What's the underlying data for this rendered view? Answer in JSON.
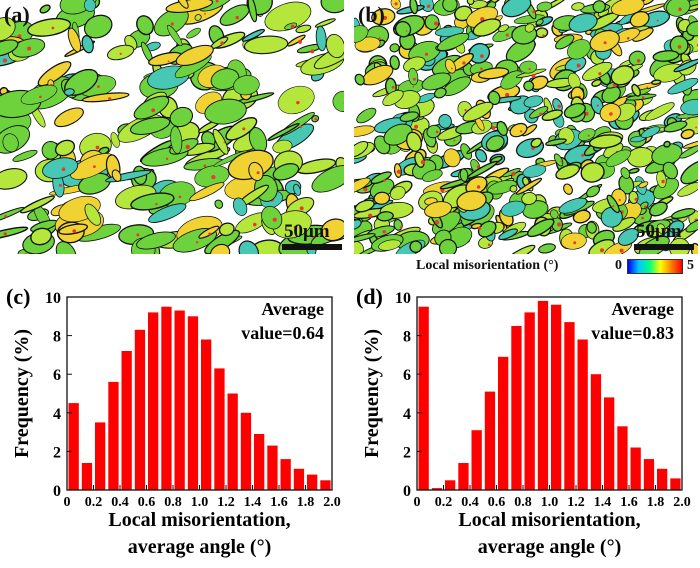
{
  "panels": {
    "a": {
      "label": "(a)",
      "scale": "50μm"
    },
    "b": {
      "label": "(b)",
      "scale": "50μm"
    },
    "c": {
      "label": "(c)"
    },
    "d": {
      "label": "(d)"
    }
  },
  "colorbar": {
    "label": "Local misorientation (°)",
    "min": "0",
    "max": "5",
    "colors": [
      "#0000ff",
      "#00c8ff",
      "#00ff80",
      "#ffff00",
      "#ff8000",
      "#ff0000"
    ]
  },
  "map_colors": {
    "base": "#6ed23c",
    "light": "#b4e63c",
    "cyan": "#46c8b4",
    "yellow": "#f0d232",
    "red": "#e63c28",
    "border": "#111111"
  },
  "chart_data": [
    {
      "type": "bar",
      "panel": "(c)",
      "ylabel": "Frequency (%)",
      "xlabel": "Local misorientation, average angle (°)",
      "xlabel_lines": [
        "Local misorientation,",
        "average angle (°)"
      ],
      "annotation": [
        "Average",
        "value=0.64"
      ],
      "x": [
        0.0,
        0.1,
        0.2,
        0.3,
        0.4,
        0.5,
        0.6,
        0.7,
        0.8,
        0.9,
        1.0,
        1.1,
        1.2,
        1.3,
        1.4,
        1.5,
        1.6,
        1.7,
        1.8,
        1.9
      ],
      "values": [
        4.5,
        1.4,
        3.5,
        5.6,
        7.2,
        8.3,
        9.2,
        9.5,
        9.3,
        9.0,
        7.8,
        6.3,
        5.0,
        4.0,
        2.9,
        2.3,
        1.6,
        1.1,
        0.8,
        0.5
      ],
      "xlim": [
        0,
        2.0
      ],
      "ylim": [
        0,
        10
      ],
      "xticks": [
        "0",
        "0.2",
        "0.4",
        "0.6",
        "0.8",
        "1.0",
        "1.2",
        "1.4",
        "1.6",
        "1.8",
        "2.0"
      ],
      "yticks": [
        "0",
        "2",
        "4",
        "6",
        "8",
        "10"
      ],
      "color": "#ff0000"
    },
    {
      "type": "bar",
      "panel": "(d)",
      "ylabel": "Frequency (%)",
      "xlabel": "Local misorientation, average angle (°)",
      "xlabel_lines": [
        "Local misorientation,",
        "average angle (°)"
      ],
      "annotation": [
        "Average",
        "value=0.83"
      ],
      "x": [
        0.0,
        0.1,
        0.2,
        0.3,
        0.4,
        0.5,
        0.6,
        0.7,
        0.8,
        0.9,
        1.0,
        1.1,
        1.2,
        1.3,
        1.4,
        1.5,
        1.6,
        1.7,
        1.8,
        1.9
      ],
      "values": [
        9.5,
        0.1,
        0.5,
        1.4,
        3.1,
        5.1,
        6.9,
        8.5,
        9.2,
        9.8,
        9.6,
        8.7,
        7.8,
        6.0,
        4.8,
        3.3,
        2.2,
        1.6,
        1.1,
        0.6
      ],
      "xlim": [
        0,
        2.0
      ],
      "ylim": [
        0,
        10
      ],
      "xticks": [
        "0",
        "0.2",
        "0.4",
        "0.6",
        "0.8",
        "1.0",
        "1.2",
        "1.4",
        "1.6",
        "1.8",
        "2.0"
      ],
      "yticks": [
        "0",
        "2",
        "4",
        "6",
        "8",
        "10"
      ],
      "color": "#ff0000"
    }
  ]
}
